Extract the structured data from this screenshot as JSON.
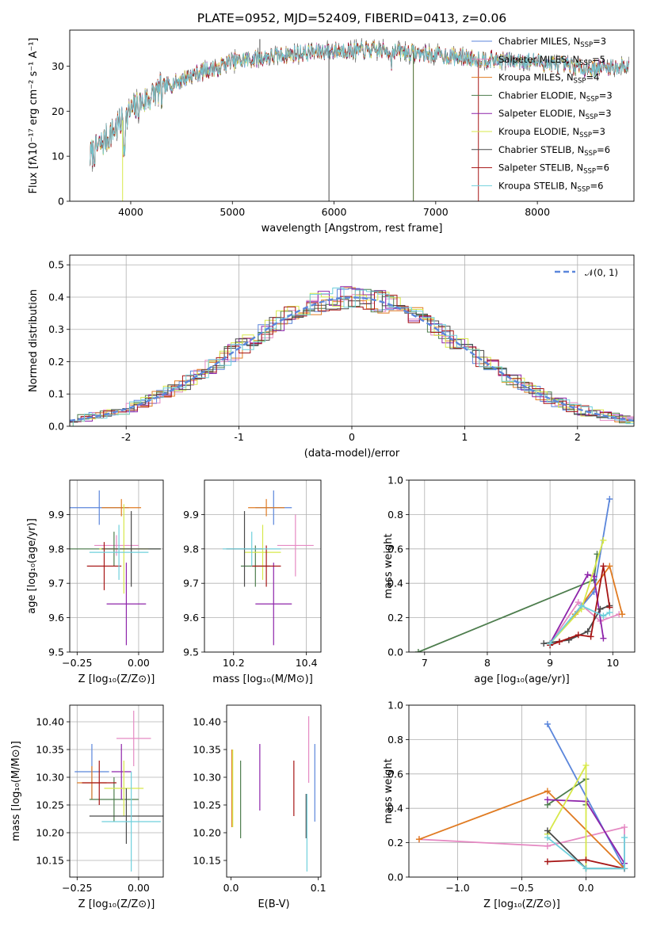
{
  "figure": {
    "title": "PLATE=0952, MJD=52409, FIBERID=0413, z=0.06"
  },
  "colors": {
    "Chabrier MILES": "#5b86db",
    "Salpeter MILES": "#e58ac3",
    "Kroupa MILES": "#e07b22",
    "Chabrier ELODIE": "#4d7d4d",
    "Salpeter ELODIE": "#8e24aa",
    "Kroupa ELODIE": "#d7e84a",
    "Chabrier STELIB": "#4a4a4a",
    "Salpeter STELIB": "#a61515",
    "Kroupa STELIB": "#6fd0dc"
  },
  "chart_data": [
    {
      "id": "spectrum",
      "type": "line",
      "title": "PLATE=0952, MJD=52409, FIBERID=0413, z=0.06",
      "xlabel": "wavelength [Angstrom, rest frame]",
      "ylabel": "Flux [fλ10⁻¹⁷ erg cm⁻² s⁻¹ A⁻¹]",
      "xlim": [
        3400,
        8950
      ],
      "ylim": [
        0,
        38
      ],
      "grid": false,
      "legend": "top-right",
      "xticks": [
        4000,
        5000,
        6000,
        7000,
        8000
      ],
      "yticks": [
        0,
        10,
        20,
        30
      ],
      "continuum": {
        "wavelength": [
          3600,
          3800,
          4000,
          4300,
          4600,
          5000,
          5500,
          6000,
          6500,
          7000,
          7500,
          8000,
          8500,
          8900
        ],
        "flux": [
          10,
          15,
          20,
          25,
          28,
          31,
          32.5,
          33.5,
          33.5,
          32.5,
          31.5,
          31,
          29.5,
          30
        ]
      },
      "series": [
        {
          "name": "Chabrier MILES",
          "label": "Chabrier MILES, N",
          "sub": "SSP",
          "n": "=3"
        },
        {
          "name": "Salpeter MILES",
          "label": "Salpeter MILES, N",
          "sub": "SSP",
          "n": "=5"
        },
        {
          "name": "Kroupa MILES",
          "label": "Kroupa MILES, N",
          "sub": "SSP",
          "n": "=4"
        },
        {
          "name": "Chabrier ELODIE",
          "label": "Chabrier ELODIE, N",
          "sub": "SSP",
          "n": "=3"
        },
        {
          "name": "Salpeter ELODIE",
          "label": "Salpeter ELODIE, N",
          "sub": "SSP",
          "n": "=3"
        },
        {
          "name": "Kroupa ELODIE",
          "label": "Kroupa ELODIE, N",
          "sub": "SSP",
          "n": "=3"
        },
        {
          "name": "Chabrier STELIB",
          "label": "Chabrier STELIB, N",
          "sub": "SSP",
          "n": "=6"
        },
        {
          "name": "Salpeter STELIB",
          "label": "Salpeter STELIB, N",
          "sub": "SSP",
          "n": "=6"
        },
        {
          "name": "Kroupa STELIB",
          "label": "Kroupa STELIB, N",
          "sub": "SSP",
          "n": "=6"
        }
      ]
    },
    {
      "id": "residuals",
      "type": "line",
      "xlabel": "(data-model)/error",
      "ylabel": "Normed distribution",
      "xlim": [
        -2.5,
        2.5
      ],
      "ylim": [
        0,
        0.53
      ],
      "grid": true,
      "legend": "top-right",
      "xticks": [
        -2,
        -1,
        0,
        1,
        2
      ],
      "yticks": [
        0.0,
        0.1,
        0.2,
        0.3,
        0.4,
        0.5
      ],
      "reference": {
        "name": "N(0,1)",
        "label": "𝒩(0, 1)",
        "mu": 0,
        "sigma": 1,
        "color": "#5b86db"
      },
      "bin_width": 0.1
    },
    {
      "id": "age_vs_Z",
      "type": "scatter",
      "xlabel": "Z [log₁₀(Z/Z⊙)]",
      "ylabel": "age  [log₁₀(age/yr)]",
      "xlim": [
        -0.28,
        0.1
      ],
      "ylim": [
        9.5,
        10.0
      ],
      "grid": true,
      "xticks": [
        -0.25,
        0.0
      ],
      "xticklabels": [
        "−0.25",
        "0.00"
      ],
      "yticks": [
        9.5,
        9.6,
        9.7,
        9.8,
        9.9
      ],
      "points": [
        {
          "series": "Chabrier MILES",
          "x": -0.16,
          "y": 9.92,
          "xerr": 0.12,
          "yerr": 0.05
        },
        {
          "series": "Salpeter MILES",
          "x": -0.09,
          "y": 9.81,
          "xerr": 0.09,
          "yerr": 0.03
        },
        {
          "series": "Kroupa MILES",
          "x": -0.07,
          "y": 9.92,
          "xerr": 0.08,
          "yerr": 0.025
        },
        {
          "series": "Chabrier ELODIE",
          "x": -0.1,
          "y": 9.8,
          "xerr": 0.19,
          "yerr": 0.05
        },
        {
          "series": "Salpeter ELODIE",
          "x": -0.05,
          "y": 9.64,
          "xerr": 0.08,
          "yerr": 0.12
        },
        {
          "series": "Kroupa ELODIE",
          "x": -0.06,
          "y": 9.8,
          "xerr": 0.1,
          "yerr": 0.13
        },
        {
          "series": "Chabrier STELIB",
          "x": -0.03,
          "y": 9.8,
          "xerr": 0.12,
          "yerr": 0.11
        },
        {
          "series": "Salpeter STELIB",
          "x": -0.14,
          "y": 9.75,
          "xerr": 0.07,
          "yerr": 0.07
        },
        {
          "series": "Kroupa STELIB",
          "x": -0.08,
          "y": 9.79,
          "xerr": 0.12,
          "yerr": 0.08
        }
      ]
    },
    {
      "id": "age_vs_mass",
      "type": "scatter",
      "xlabel": "mass [log₁₀(M/M⊙)]",
      "ylabel": "",
      "xlim": [
        10.12,
        10.44
      ],
      "ylim": [
        9.5,
        10.0
      ],
      "grid": true,
      "xticks": [
        10.2,
        10.4
      ],
      "yticks": [
        9.5,
        9.6,
        9.7,
        9.8,
        9.9
      ],
      "points": [
        {
          "series": "Chabrier MILES",
          "x": 10.31,
          "y": 9.92,
          "xerr": 0.05,
          "yerr": 0.05
        },
        {
          "series": "Salpeter MILES",
          "x": 10.37,
          "y": 9.81,
          "xerr": 0.05,
          "yerr": 0.09
        },
        {
          "series": "Kroupa MILES",
          "x": 10.29,
          "y": 9.92,
          "xerr": 0.05,
          "yerr": 0.025
        },
        {
          "series": "Chabrier ELODIE",
          "x": 10.26,
          "y": 9.75,
          "xerr": 0.04,
          "yerr": 0.06
        },
        {
          "series": "Salpeter ELODIE",
          "x": 10.31,
          "y": 9.64,
          "xerr": 0.05,
          "yerr": 0.12
        },
        {
          "series": "Kroupa ELODIE",
          "x": 10.28,
          "y": 9.79,
          "xerr": 0.05,
          "yerr": 0.08
        },
        {
          "series": "Chabrier STELIB",
          "x": 10.23,
          "y": 9.8,
          "xerr": 0.05,
          "yerr": 0.11
        },
        {
          "series": "Salpeter STELIB",
          "x": 10.29,
          "y": 9.75,
          "xerr": 0.04,
          "yerr": 0.06
        },
        {
          "series": "Kroupa STELIB",
          "x": 10.25,
          "y": 9.8,
          "xerr": 0.08,
          "yerr": 0.05
        }
      ]
    },
    {
      "id": "massweight_vs_age",
      "type": "line",
      "xlabel": "age  [log₁₀(age/yr)]",
      "ylabel": "mass weight",
      "xlim": [
        6.75,
        10.35
      ],
      "ylim": [
        0,
        1.0
      ],
      "grid": true,
      "xticks": [
        7,
        8,
        9,
        10
      ],
      "yticks": [
        0.0,
        0.2,
        0.4,
        0.6,
        0.8,
        1.0
      ],
      "series": [
        {
          "name": "Chabrier MILES",
          "x": [
            9.0,
            9.7,
            9.95
          ],
          "y": [
            0.05,
            0.35,
            0.89
          ]
        },
        {
          "name": "Salpeter MILES",
          "x": [
            9.0,
            9.45,
            9.8,
            10.1
          ],
          "y": [
            0.05,
            0.29,
            0.18,
            0.22
          ]
        },
        {
          "name": "Kroupa MILES",
          "x": [
            9.0,
            9.4,
            9.95,
            10.15
          ],
          "y": [
            0.05,
            0.22,
            0.5,
            0.22
          ]
        },
        {
          "name": "Chabrier ELODIE",
          "x": [
            6.9,
            9.7,
            9.75
          ],
          "y": [
            0.0,
            0.42,
            0.57
          ]
        },
        {
          "name": "Salpeter ELODIE",
          "x": [
            9.0,
            9.6,
            9.7,
            9.85
          ],
          "y": [
            0.05,
            0.45,
            0.44,
            0.08
          ]
        },
        {
          "name": "Kroupa ELODIE",
          "x": [
            9.0,
            9.5,
            9.85
          ],
          "y": [
            0.05,
            0.25,
            0.65
          ]
        },
        {
          "name": "Chabrier STELIB",
          "x": [
            8.9,
            9.3,
            9.6,
            9.8,
            9.95
          ],
          "y": [
            0.05,
            0.07,
            0.12,
            0.25,
            0.27
          ]
        },
        {
          "name": "Salpeter STELIB",
          "x": [
            9.0,
            9.15,
            9.45,
            9.65,
            9.85,
            9.95
          ],
          "y": [
            0.04,
            0.06,
            0.1,
            0.09,
            0.5,
            0.26
          ]
        },
        {
          "name": "Kroupa STELIB",
          "x": [
            9.0,
            9.5,
            9.85,
            9.95
          ],
          "y": [
            0.05,
            0.27,
            0.21,
            0.23
          ]
        }
      ]
    },
    {
      "id": "mass_vs_Z",
      "type": "scatter",
      "xlabel": "Z [log₁₀(Z/Z⊙)]",
      "ylabel": "mass [log₁₀(M/M⊙)]",
      "xlim": [
        -0.28,
        0.1
      ],
      "ylim": [
        10.12,
        10.43
      ],
      "grid": true,
      "xticks": [
        -0.25,
        0.0
      ],
      "xticklabels": [
        "−0.25",
        "0.00"
      ],
      "yticks": [
        10.15,
        10.2,
        10.25,
        10.3,
        10.35,
        10.4
      ],
      "points": [
        {
          "series": "Chabrier MILES",
          "x": -0.19,
          "y": 10.31,
          "xerr": 0.07,
          "yerr": 0.05
        },
        {
          "series": "Salpeter MILES",
          "x": -0.02,
          "y": 10.37,
          "xerr": 0.07,
          "yerr": 0.05
        },
        {
          "series": "Kroupa MILES",
          "x": -0.19,
          "y": 10.29,
          "xerr": 0.06,
          "yerr": 0.03
        },
        {
          "series": "Chabrier ELODIE",
          "x": -0.1,
          "y": 10.26,
          "xerr": 0.1,
          "yerr": 0.04
        },
        {
          "series": "Salpeter ELODIE",
          "x": -0.07,
          "y": 10.31,
          "xerr": 0.04,
          "yerr": 0.05
        },
        {
          "series": "Kroupa ELODIE",
          "x": -0.06,
          "y": 10.28,
          "xerr": 0.08,
          "yerr": 0.05
        },
        {
          "series": "Chabrier STELIB",
          "x": -0.05,
          "y": 10.23,
          "xerr": 0.15,
          "yerr": 0.05
        },
        {
          "series": "Salpeter STELIB",
          "x": -0.16,
          "y": 10.29,
          "xerr": 0.07,
          "yerr": 0.04
        },
        {
          "series": "Kroupa STELIB",
          "x": -0.03,
          "y": 10.22,
          "xerr": 0.12,
          "yerr": 0.09
        }
      ]
    },
    {
      "id": "mass_vs_EBV",
      "type": "scatter",
      "xlabel": "E(B-V)",
      "ylabel": "",
      "xlim": [
        -0.005,
        0.103
      ],
      "ylim": [
        10.12,
        10.43
      ],
      "grid": false,
      "xticks": [
        0.0,
        0.1
      ],
      "yticks": [
        10.15,
        10.2,
        10.25,
        10.3,
        10.35,
        10.4
      ],
      "points": [
        {
          "series": "Chabrier MILES",
          "x": 0.096,
          "y": 10.29,
          "yerr": 0.07
        },
        {
          "series": "Salpeter MILES",
          "x": 0.089,
          "y": 10.35,
          "yerr": 0.06
        },
        {
          "series": "Kroupa MILES",
          "x": 0.001,
          "y": 10.28,
          "yerr": 0.07
        },
        {
          "series": "Chabrier ELODIE",
          "x": 0.011,
          "y": 10.26,
          "yerr": 0.07
        },
        {
          "series": "Salpeter ELODIE",
          "x": 0.033,
          "y": 10.3,
          "yerr": 0.06
        },
        {
          "series": "Kroupa ELODIE",
          "x": 0.002,
          "y": 10.28,
          "yerr": 0.07
        },
        {
          "series": "Chabrier STELIB",
          "x": 0.086,
          "y": 10.23,
          "yerr": 0.04
        },
        {
          "series": "Salpeter STELIB",
          "x": 0.072,
          "y": 10.28,
          "yerr": 0.05
        },
        {
          "series": "Kroupa STELIB",
          "x": 0.087,
          "y": 10.2,
          "yerr": 0.07
        }
      ]
    },
    {
      "id": "massweight_vs_Z",
      "type": "line",
      "xlabel": "Z [log₁₀(Z/Z⊙)]",
      "ylabel": "mass weight",
      "xlim": [
        -1.38,
        0.38
      ],
      "ylim": [
        0,
        1.0
      ],
      "grid": true,
      "xticks": [
        -1.0,
        -0.5,
        0.0
      ],
      "xticklabels": [
        "−1.0",
        "−0.5",
        "0.0"
      ],
      "yticks": [
        0.0,
        0.2,
        0.4,
        0.6,
        0.8,
        1.0
      ],
      "series": [
        {
          "name": "Chabrier MILES",
          "x": [
            -0.3,
            0.3,
            0.3
          ],
          "y": [
            0.89,
            0.05,
            0.05
          ]
        },
        {
          "name": "Salpeter MILES",
          "x": [
            -1.3,
            -0.3,
            0.3,
            0.3
          ],
          "y": [
            0.22,
            0.18,
            0.29,
            0.05
          ]
        },
        {
          "name": "Kroupa MILES",
          "x": [
            -1.3,
            -0.3,
            0.3
          ],
          "y": [
            0.22,
            0.5,
            0.05
          ]
        },
        {
          "name": "Chabrier ELODIE",
          "x": [
            -0.3,
            0.0,
            0.0
          ],
          "y": [
            0.42,
            0.57,
            0.42
          ]
        },
        {
          "name": "Salpeter ELODIE",
          "x": [
            -0.3,
            0.0,
            0.3
          ],
          "y": [
            0.45,
            0.44,
            0.08
          ]
        },
        {
          "name": "Kroupa ELODIE",
          "x": [
            -0.3,
            0.0,
            0.0
          ],
          "y": [
            0.25,
            0.65,
            0.05
          ]
        },
        {
          "name": "Chabrier STELIB",
          "x": [
            -0.3,
            0.0,
            0.3
          ],
          "y": [
            0.27,
            0.05,
            0.05
          ]
        },
        {
          "name": "Salpeter STELIB",
          "x": [
            -0.3,
            0.0,
            0.3
          ],
          "y": [
            0.09,
            0.1,
            0.05
          ]
        },
        {
          "name": "Kroupa STELIB",
          "x": [
            -0.3,
            0.0,
            0.3,
            0.3
          ],
          "y": [
            0.23,
            0.05,
            0.05,
            0.23
          ]
        }
      ]
    }
  ]
}
